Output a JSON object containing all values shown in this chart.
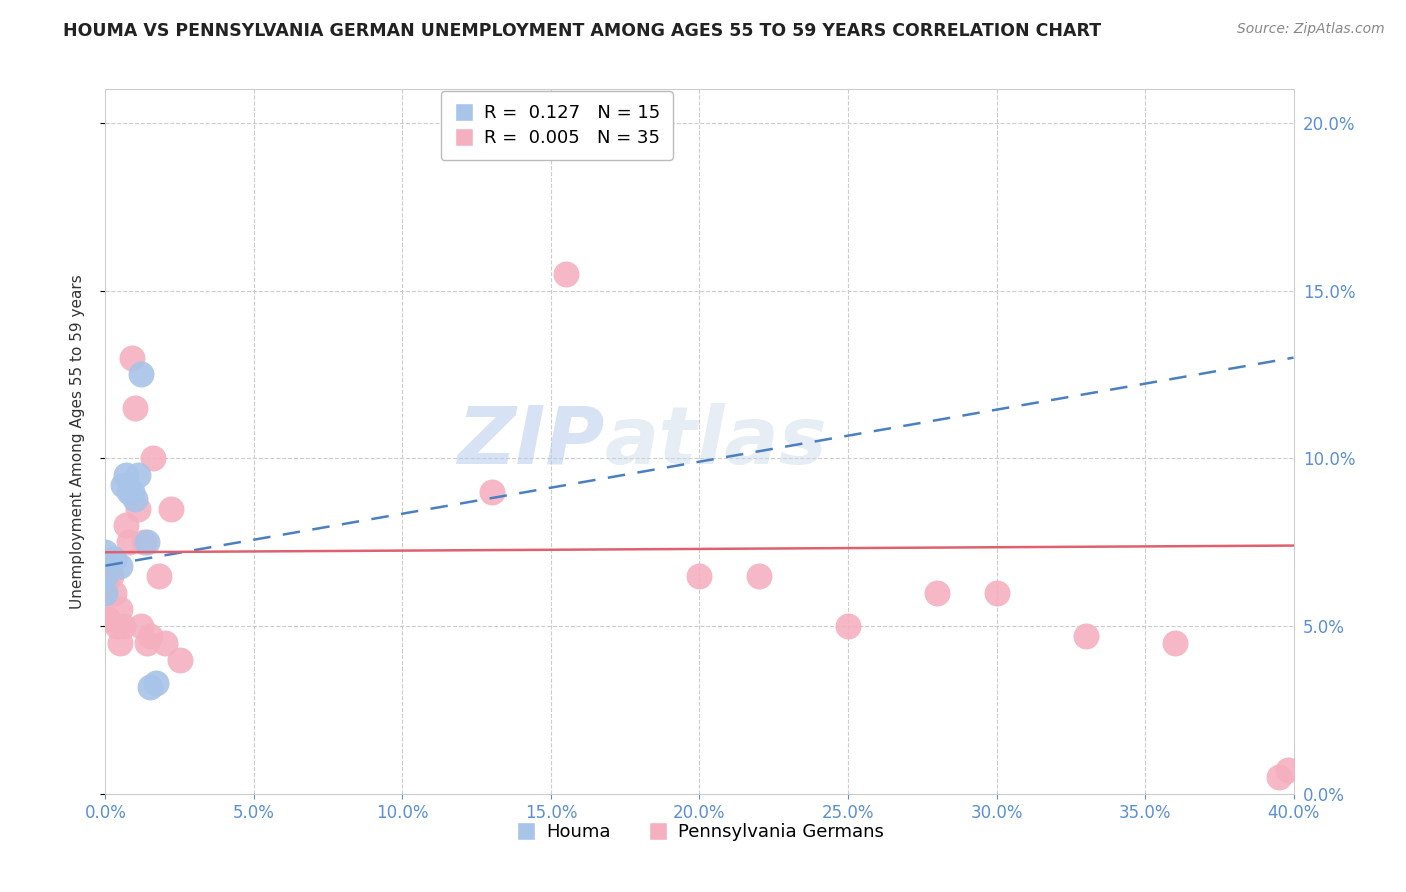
{
  "title": "HOUMA VS PENNSYLVANIA GERMAN UNEMPLOYMENT AMONG AGES 55 TO 59 YEARS CORRELATION CHART",
  "source": "Source: ZipAtlas.com",
  "ylabel": "Unemployment Among Ages 55 to 59 years",
  "x_min": 0.0,
  "x_max": 0.4,
  "y_min": 0.0,
  "y_max": 0.21,
  "x_ticks": [
    0.0,
    0.05,
    0.1,
    0.15,
    0.2,
    0.25,
    0.3,
    0.35,
    0.4
  ],
  "y_ticks": [
    0.0,
    0.05,
    0.1,
    0.15,
    0.2
  ],
  "houma_R": 0.127,
  "houma_N": 15,
  "pg_R": 0.005,
  "pg_N": 35,
  "houma_color": "#a8c4e8",
  "pg_color": "#f5b0c0",
  "houma_trend_color": "#4a7fc0",
  "pg_trend_color": "#e06070",
  "legend_label_houma": "Houma",
  "legend_label_pg": "Pennsylvania Germans",
  "watermark_zip": "ZIP",
  "watermark_atlas": "atlas",
  "houma_x": [
    0.0,
    0.0,
    0.0,
    0.003,
    0.005,
    0.006,
    0.007,
    0.008,
    0.009,
    0.01,
    0.011,
    0.012,
    0.014,
    0.015,
    0.017
  ],
  "houma_y": [
    0.072,
    0.065,
    0.06,
    0.07,
    0.068,
    0.092,
    0.095,
    0.09,
    0.09,
    0.088,
    0.095,
    0.125,
    0.075,
    0.032,
    0.033
  ],
  "pg_x": [
    0.0,
    0.0,
    0.001,
    0.001,
    0.002,
    0.003,
    0.004,
    0.005,
    0.005,
    0.006,
    0.007,
    0.008,
    0.009,
    0.01,
    0.011,
    0.012,
    0.013,
    0.014,
    0.015,
    0.016,
    0.018,
    0.02,
    0.022,
    0.025,
    0.13,
    0.155,
    0.2,
    0.22,
    0.25,
    0.28,
    0.3,
    0.33,
    0.36,
    0.395,
    0.398
  ],
  "pg_y": [
    0.06,
    0.052,
    0.065,
    0.052,
    0.065,
    0.06,
    0.05,
    0.045,
    0.055,
    0.05,
    0.08,
    0.075,
    0.13,
    0.115,
    0.085,
    0.05,
    0.075,
    0.045,
    0.047,
    0.1,
    0.065,
    0.045,
    0.085,
    0.04,
    0.09,
    0.155,
    0.065,
    0.065,
    0.05,
    0.06,
    0.06,
    0.047,
    0.045,
    0.005,
    0.007
  ],
  "houma_trend_x": [
    0.0,
    0.4
  ],
  "houma_trend_y": [
    0.068,
    0.13
  ],
  "pg_trend_x": [
    0.0,
    0.4
  ],
  "pg_trend_y": [
    0.072,
    0.074
  ]
}
